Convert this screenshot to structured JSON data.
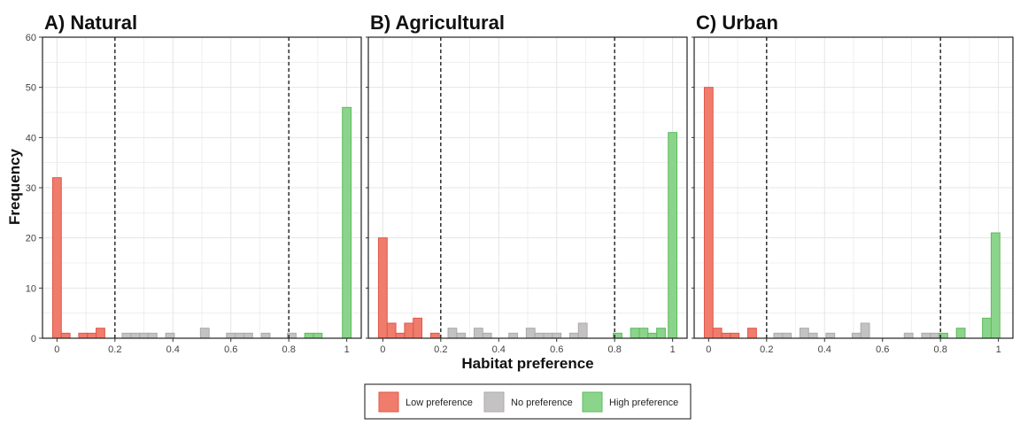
{
  "chart_data": {
    "type": "bar",
    "xlabel": "Habitat preference",
    "ylabel": "Frequency",
    "xlim": [
      -0.05,
      1.05
    ],
    "ylim": [
      0,
      60
    ],
    "x_ticks": [
      0,
      0.2,
      0.4,
      0.6,
      0.8,
      1
    ],
    "x_tick_labels": [
      "0",
      "0.2",
      "0.4",
      "0.6",
      "0.8",
      "1"
    ],
    "y_ticks": [
      0,
      10,
      20,
      30,
      40,
      50,
      60
    ],
    "y_tick_labels": [
      "0",
      "10",
      "20",
      "30",
      "40",
      "50",
      "60"
    ],
    "thresholds": [
      0.2,
      0.8
    ],
    "bin_width": 0.03,
    "grid": true,
    "legend_position": "bottom",
    "categories_legend": [
      {
        "key": "low",
        "name": "Low preference",
        "fill": "#F07C6C",
        "stroke": "#E0574A"
      },
      {
        "key": "none",
        "name": "No preference",
        "fill": "#C4C2C2",
        "stroke": "#ABA9A9"
      },
      {
        "key": "high",
        "name": "High preference",
        "fill": "#8BD48B",
        "stroke": "#5DBB5D"
      }
    ],
    "panels": [
      {
        "title": "A) Natural",
        "bins": [
          {
            "x": 0.0,
            "count": 32,
            "group": "low"
          },
          {
            "x": 0.03,
            "count": 1,
            "group": "low"
          },
          {
            "x": 0.09,
            "count": 1,
            "group": "low"
          },
          {
            "x": 0.12,
            "count": 1,
            "group": "low"
          },
          {
            "x": 0.15,
            "count": 2,
            "group": "low"
          },
          {
            "x": 0.24,
            "count": 1,
            "group": "none"
          },
          {
            "x": 0.27,
            "count": 1,
            "group": "none"
          },
          {
            "x": 0.3,
            "count": 1,
            "group": "none"
          },
          {
            "x": 0.33,
            "count": 1,
            "group": "none"
          },
          {
            "x": 0.39,
            "count": 1,
            "group": "none"
          },
          {
            "x": 0.51,
            "count": 2,
            "group": "none"
          },
          {
            "x": 0.6,
            "count": 1,
            "group": "none"
          },
          {
            "x": 0.63,
            "count": 1,
            "group": "none"
          },
          {
            "x": 0.66,
            "count": 1,
            "group": "none"
          },
          {
            "x": 0.72,
            "count": 1,
            "group": "none"
          },
          {
            "x": 0.81,
            "count": 1,
            "group": "none"
          },
          {
            "x": 0.87,
            "count": 1,
            "group": "high"
          },
          {
            "x": 0.9,
            "count": 1,
            "group": "high"
          },
          {
            "x": 1.0,
            "count": 46,
            "group": "high"
          }
        ]
      },
      {
        "title": "B) Agricultural",
        "bins": [
          {
            "x": 0.0,
            "count": 20,
            "group": "low"
          },
          {
            "x": 0.03,
            "count": 3,
            "group": "low"
          },
          {
            "x": 0.06,
            "count": 1,
            "group": "low"
          },
          {
            "x": 0.09,
            "count": 3,
            "group": "low"
          },
          {
            "x": 0.12,
            "count": 4,
            "group": "low"
          },
          {
            "x": 0.18,
            "count": 1,
            "group": "low"
          },
          {
            "x": 0.24,
            "count": 2,
            "group": "none"
          },
          {
            "x": 0.27,
            "count": 1,
            "group": "none"
          },
          {
            "x": 0.33,
            "count": 2,
            "group": "none"
          },
          {
            "x": 0.36,
            "count": 1,
            "group": "none"
          },
          {
            "x": 0.45,
            "count": 1,
            "group": "none"
          },
          {
            "x": 0.51,
            "count": 2,
            "group": "none"
          },
          {
            "x": 0.54,
            "count": 1,
            "group": "none"
          },
          {
            "x": 0.57,
            "count": 1,
            "group": "none"
          },
          {
            "x": 0.6,
            "count": 1,
            "group": "none"
          },
          {
            "x": 0.66,
            "count": 1,
            "group": "none"
          },
          {
            "x": 0.69,
            "count": 3,
            "group": "none"
          },
          {
            "x": 0.81,
            "count": 1,
            "group": "high"
          },
          {
            "x": 0.87,
            "count": 2,
            "group": "high"
          },
          {
            "x": 0.9,
            "count": 2,
            "group": "high"
          },
          {
            "x": 0.93,
            "count": 1,
            "group": "high"
          },
          {
            "x": 0.96,
            "count": 2,
            "group": "high"
          },
          {
            "x": 1.0,
            "count": 41,
            "group": "high"
          }
        ]
      },
      {
        "title": "C) Urban",
        "bins": [
          {
            "x": 0.0,
            "count": 50,
            "group": "low"
          },
          {
            "x": 0.03,
            "count": 2,
            "group": "low"
          },
          {
            "x": 0.06,
            "count": 1,
            "group": "low"
          },
          {
            "x": 0.09,
            "count": 1,
            "group": "low"
          },
          {
            "x": 0.15,
            "count": 2,
            "group": "low"
          },
          {
            "x": 0.24,
            "count": 1,
            "group": "none"
          },
          {
            "x": 0.27,
            "count": 1,
            "group": "none"
          },
          {
            "x": 0.33,
            "count": 2,
            "group": "none"
          },
          {
            "x": 0.36,
            "count": 1,
            "group": "none"
          },
          {
            "x": 0.42,
            "count": 1,
            "group": "none"
          },
          {
            "x": 0.51,
            "count": 1,
            "group": "none"
          },
          {
            "x": 0.54,
            "count": 3,
            "group": "none"
          },
          {
            "x": 0.69,
            "count": 1,
            "group": "none"
          },
          {
            "x": 0.75,
            "count": 1,
            "group": "none"
          },
          {
            "x": 0.78,
            "count": 1,
            "group": "none"
          },
          {
            "x": 0.81,
            "count": 1,
            "group": "high"
          },
          {
            "x": 0.87,
            "count": 2,
            "group": "high"
          },
          {
            "x": 0.96,
            "count": 4,
            "group": "high"
          },
          {
            "x": 0.99,
            "count": 21,
            "group": "high"
          }
        ]
      }
    ]
  }
}
